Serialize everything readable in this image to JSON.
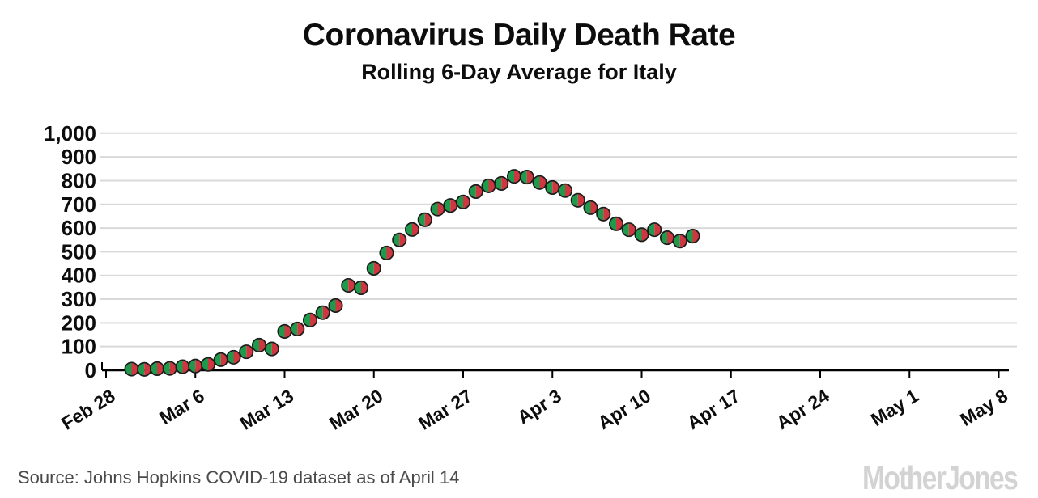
{
  "title": "Coronavirus Daily Death Rate",
  "subtitle": "Rolling 6-Day Average for Italy",
  "footer": {
    "source": "Source: Johns Hopkins COVID-19 dataset as of April 14",
    "logo": "MotherJones"
  },
  "colors": {
    "marker_left_green": "#1f9a4d",
    "marker_right_red": "#cf3740",
    "marker_outline": "#1c1c1c",
    "gridline": "#d9d9d9",
    "axis": "#000000",
    "frame_border": "#c9c9c9",
    "text": "#0d0d0d",
    "source_text": "#4a4a4a",
    "logo_gray": "#d3d3d3"
  },
  "chart_data": {
    "type": "scatter",
    "title": "Coronavirus Daily Death Rate",
    "subtitle": "Rolling 6-Day Average for Italy",
    "xlabel": "",
    "ylabel": "",
    "ylim": [
      0,
      1000
    ],
    "grid": "horizontal",
    "legend": "none",
    "marker": {
      "shape": "circle-split-half",
      "left_color": "#1f9a4d",
      "right_color": "#cf3740",
      "outline_color": "#1c1c1c"
    },
    "y_ticks": [
      0,
      100,
      200,
      300,
      400,
      500,
      600,
      700,
      800,
      900,
      1000
    ],
    "y_tick_labels": [
      "0",
      "100",
      "200",
      "300",
      "400",
      "500",
      "600",
      "700",
      "800",
      "900",
      "1,000"
    ],
    "x_tick_labels": [
      "Feb 28",
      "Mar 6",
      "Mar 13",
      "Mar 20",
      "Mar 27",
      "Apr 3",
      "Apr 10",
      "Apr 17",
      "Apr 24",
      "May 1",
      "May 8"
    ],
    "x_tick_day_offsets": [
      0,
      7,
      14,
      21,
      28,
      35,
      42,
      49,
      56,
      63,
      70
    ],
    "points": [
      {
        "date": "Mar 1",
        "day": 2,
        "value": 5
      },
      {
        "date": "Mar 2",
        "day": 3,
        "value": 4
      },
      {
        "date": "Mar 3",
        "day": 4,
        "value": 7
      },
      {
        "date": "Mar 4",
        "day": 5,
        "value": 8
      },
      {
        "date": "Mar 5",
        "day": 6,
        "value": 15
      },
      {
        "date": "Mar 6",
        "day": 7,
        "value": 18
      },
      {
        "date": "Mar 7",
        "day": 8,
        "value": 25
      },
      {
        "date": "Mar 8",
        "day": 9,
        "value": 45
      },
      {
        "date": "Mar 9",
        "day": 10,
        "value": 55
      },
      {
        "date": "Mar 10",
        "day": 11,
        "value": 78
      },
      {
        "date": "Mar 11",
        "day": 12,
        "value": 106
      },
      {
        "date": "Mar 12",
        "day": 13,
        "value": 90
      },
      {
        "date": "Mar 13",
        "day": 14,
        "value": 164
      },
      {
        "date": "Mar 14",
        "day": 15,
        "value": 174
      },
      {
        "date": "Mar 15",
        "day": 16,
        "value": 212
      },
      {
        "date": "Mar 16",
        "day": 17,
        "value": 243
      },
      {
        "date": "Mar 17",
        "day": 18,
        "value": 273
      },
      {
        "date": "Mar 18",
        "day": 19,
        "value": 358
      },
      {
        "date": "Mar 19",
        "day": 20,
        "value": 348
      },
      {
        "date": "Mar 20",
        "day": 21,
        "value": 430
      },
      {
        "date": "Mar 21",
        "day": 22,
        "value": 495
      },
      {
        "date": "Mar 22",
        "day": 23,
        "value": 550
      },
      {
        "date": "Mar 23",
        "day": 24,
        "value": 594
      },
      {
        "date": "Mar 24",
        "day": 25,
        "value": 635
      },
      {
        "date": "Mar 25",
        "day": 26,
        "value": 680
      },
      {
        "date": "Mar 26",
        "day": 27,
        "value": 695
      },
      {
        "date": "Mar 27",
        "day": 28,
        "value": 710
      },
      {
        "date": "Mar 28",
        "day": 29,
        "value": 754
      },
      {
        "date": "Mar 29",
        "day": 30,
        "value": 778
      },
      {
        "date": "Mar 30",
        "day": 31,
        "value": 788
      },
      {
        "date": "Mar 31",
        "day": 32,
        "value": 818
      },
      {
        "date": "Apr 1",
        "day": 33,
        "value": 815
      },
      {
        "date": "Apr 2",
        "day": 34,
        "value": 792
      },
      {
        "date": "Apr 3",
        "day": 35,
        "value": 771
      },
      {
        "date": "Apr 4",
        "day": 36,
        "value": 758
      },
      {
        "date": "Apr 5",
        "day": 37,
        "value": 717
      },
      {
        "date": "Apr 6",
        "day": 38,
        "value": 686
      },
      {
        "date": "Apr 7",
        "day": 39,
        "value": 659
      },
      {
        "date": "Apr 8",
        "day": 40,
        "value": 618
      },
      {
        "date": "Apr 9",
        "day": 41,
        "value": 593
      },
      {
        "date": "Apr 10",
        "day": 42,
        "value": 572
      },
      {
        "date": "Apr 11",
        "day": 43,
        "value": 593
      },
      {
        "date": "Apr 12",
        "day": 44,
        "value": 559
      },
      {
        "date": "Apr 13",
        "day": 45,
        "value": 545
      },
      {
        "date": "Apr 14",
        "day": 46,
        "value": 566
      }
    ]
  }
}
